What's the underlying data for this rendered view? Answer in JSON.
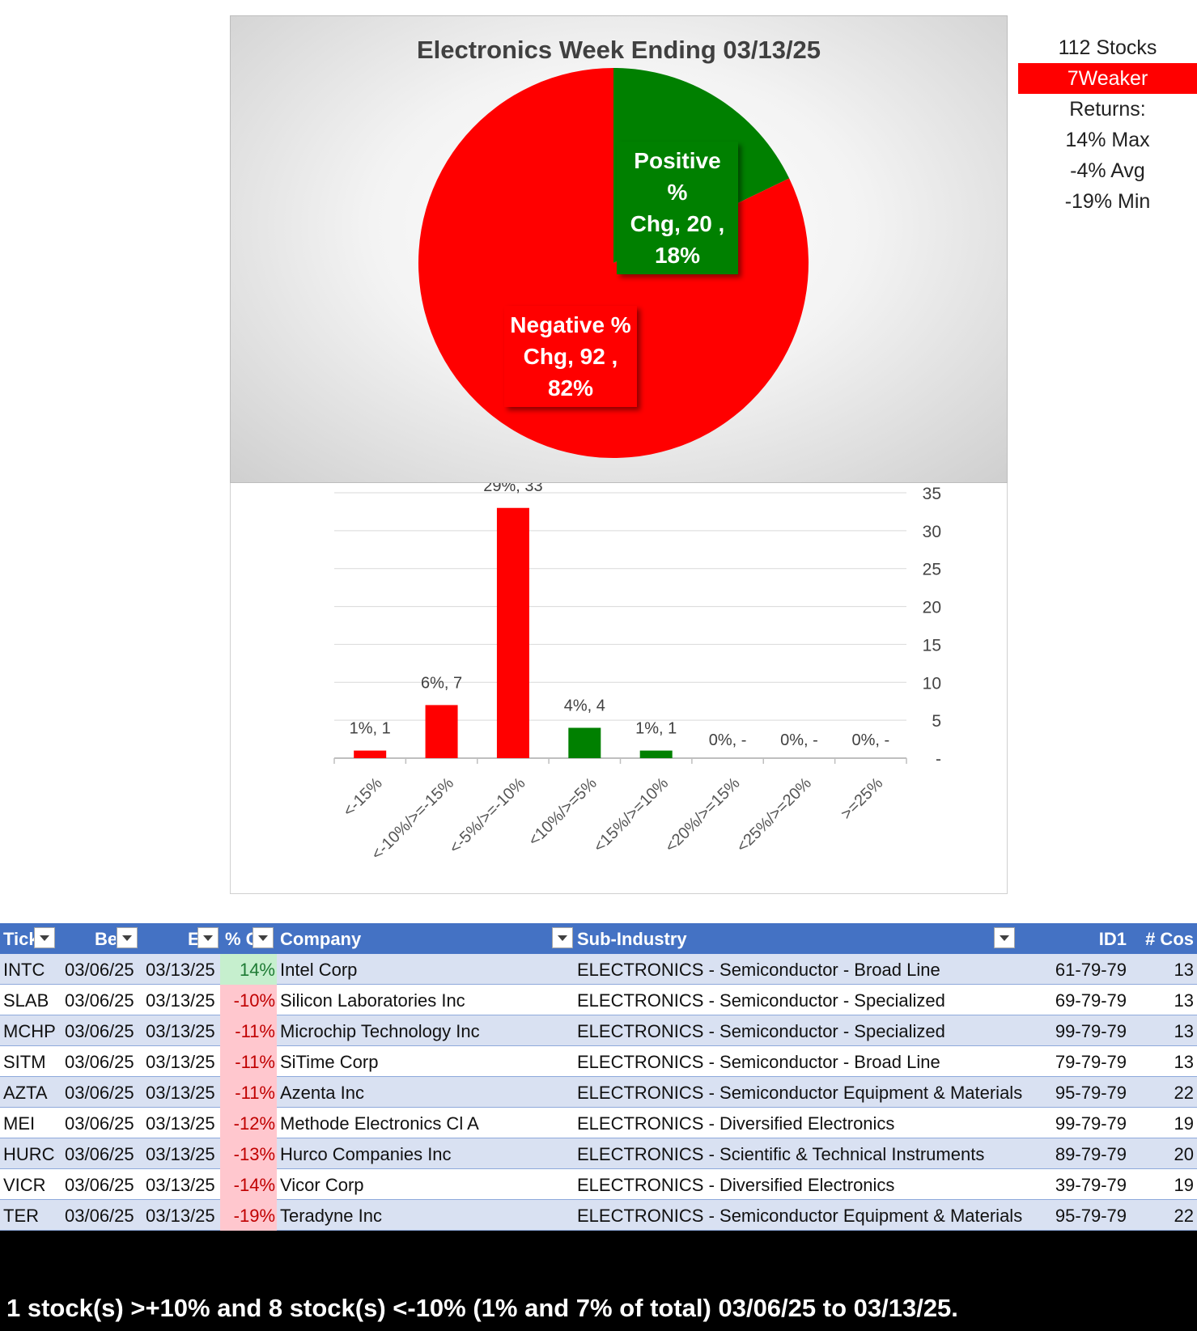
{
  "pie_chart": {
    "title": "Electronics Week Ending 03/13/25",
    "chart_data": {
      "type": "pie",
      "title": "Electronics Week Ending 03/13/25",
      "slices": [
        {
          "name": "Positive % Chg",
          "value": 20,
          "percent": "18%",
          "color": "#008000",
          "label_lines": [
            "Positive %",
            "Chg,  20 ,",
            "18%"
          ]
        },
        {
          "name": "Negative % Chg",
          "value": 92,
          "percent": "82%",
          "color": "#ff0000",
          "label_lines": [
            "Negative %",
            "Chg,  92 ,",
            "82%"
          ]
        }
      ]
    }
  },
  "bar_chart": {
    "chart_data": {
      "type": "bar",
      "categories": [
        "<-15%",
        "<-10%/>=-15%",
        "<-5%/>=-10%",
        "<10%/>=5%",
        "<15%/>=10%",
        "<20%/>=15%",
        "<25%/>=20%",
        ">=25%"
      ],
      "values": [
        1,
        7,
        33,
        4,
        1,
        0,
        0,
        0
      ],
      "data_labels": [
        "1%,  1",
        "6%,  7",
        "29%,  33",
        "4%,  4",
        "1%,  1",
        "0%,  -",
        "0%,  -",
        "0%,  -"
      ],
      "colors": [
        "#ff0000",
        "#ff0000",
        "#ff0000",
        "#008000",
        "#008000",
        "#008000",
        "#008000",
        "#008000"
      ],
      "ylim": [
        0,
        35
      ],
      "yticks": [
        0,
        5,
        10,
        15,
        20,
        25,
        30,
        35
      ],
      "ytick_labels": [
        "-",
        "5",
        "10",
        "15",
        "20",
        "25",
        "30",
        "35"
      ],
      "y_axis_side": "right",
      "grid": true
    }
  },
  "stats": {
    "stocks": "112 Stocks",
    "weaker": "7Weaker",
    "returns_label": "Returns:",
    "max": "14% Max",
    "avg": "-4% Avg",
    "min": "-19% Min",
    "weaker_color": "#ff0000"
  },
  "table": {
    "headers": [
      "Tick",
      "Be",
      "E",
      "% C",
      "Company",
      "Sub-Industry",
      "ID1",
      "# Cos"
    ],
    "rows": [
      {
        "tick": "INTC",
        "beg": "03/06/25",
        "end": "03/13/25",
        "pct": "14%",
        "sign": "pos",
        "company": "Intel Corp",
        "sub": "ELECTRONICS - Semiconductor - Broad Line",
        "id1": "61-79-79",
        "cos": "13"
      },
      {
        "tick": "SLAB",
        "beg": "03/06/25",
        "end": "03/13/25",
        "pct": "-10%",
        "sign": "neg",
        "company": "Silicon Laboratories Inc",
        "sub": "ELECTRONICS - Semiconductor - Specialized",
        "id1": "69-79-79",
        "cos": "13"
      },
      {
        "tick": "MCHP",
        "beg": "03/06/25",
        "end": "03/13/25",
        "pct": "-11%",
        "sign": "neg",
        "company": "Microchip Technology Inc",
        "sub": "ELECTRONICS - Semiconductor - Specialized",
        "id1": "99-79-79",
        "cos": "13"
      },
      {
        "tick": "SITM",
        "beg": "03/06/25",
        "end": "03/13/25",
        "pct": "-11%",
        "sign": "neg",
        "company": "SiTime Corp",
        "sub": "ELECTRONICS - Semiconductor - Broad Line",
        "id1": "79-79-79",
        "cos": "13"
      },
      {
        "tick": "AZTA",
        "beg": "03/06/25",
        "end": "03/13/25",
        "pct": "-11%",
        "sign": "neg",
        "company": "Azenta Inc",
        "sub": "ELECTRONICS - Semiconductor Equipment & Materials",
        "id1": "95-79-79",
        "cos": "22"
      },
      {
        "tick": "MEI",
        "beg": "03/06/25",
        "end": "03/13/25",
        "pct": "-12%",
        "sign": "neg",
        "company": "Methode Electronics Cl A",
        "sub": "ELECTRONICS - Diversified Electronics",
        "id1": "99-79-79",
        "cos": "19"
      },
      {
        "tick": "HURC",
        "beg": "03/06/25",
        "end": "03/13/25",
        "pct": "-13%",
        "sign": "neg",
        "company": "Hurco Companies Inc",
        "sub": "ELECTRONICS - Scientific & Technical Instruments",
        "id1": "89-79-79",
        "cos": "20"
      },
      {
        "tick": "VICR",
        "beg": "03/06/25",
        "end": "03/13/25",
        "pct": "-14%",
        "sign": "neg",
        "company": "Vicor Corp",
        "sub": "ELECTRONICS - Diversified Electronics",
        "id1": "39-79-79",
        "cos": "19"
      },
      {
        "tick": "TER",
        "beg": "03/06/25",
        "end": "03/13/25",
        "pct": "-19%",
        "sign": "neg",
        "company": "Teradyne Inc",
        "sub": "ELECTRONICS - Semiconductor Equipment & Materials",
        "id1": "95-79-79",
        "cos": "22"
      }
    ]
  },
  "footer": {
    "summary": "1 stock(s) >+10% and 8 stock(s) <-10% (1% and 7% of total) 03/06/25 to 03/13/25."
  }
}
